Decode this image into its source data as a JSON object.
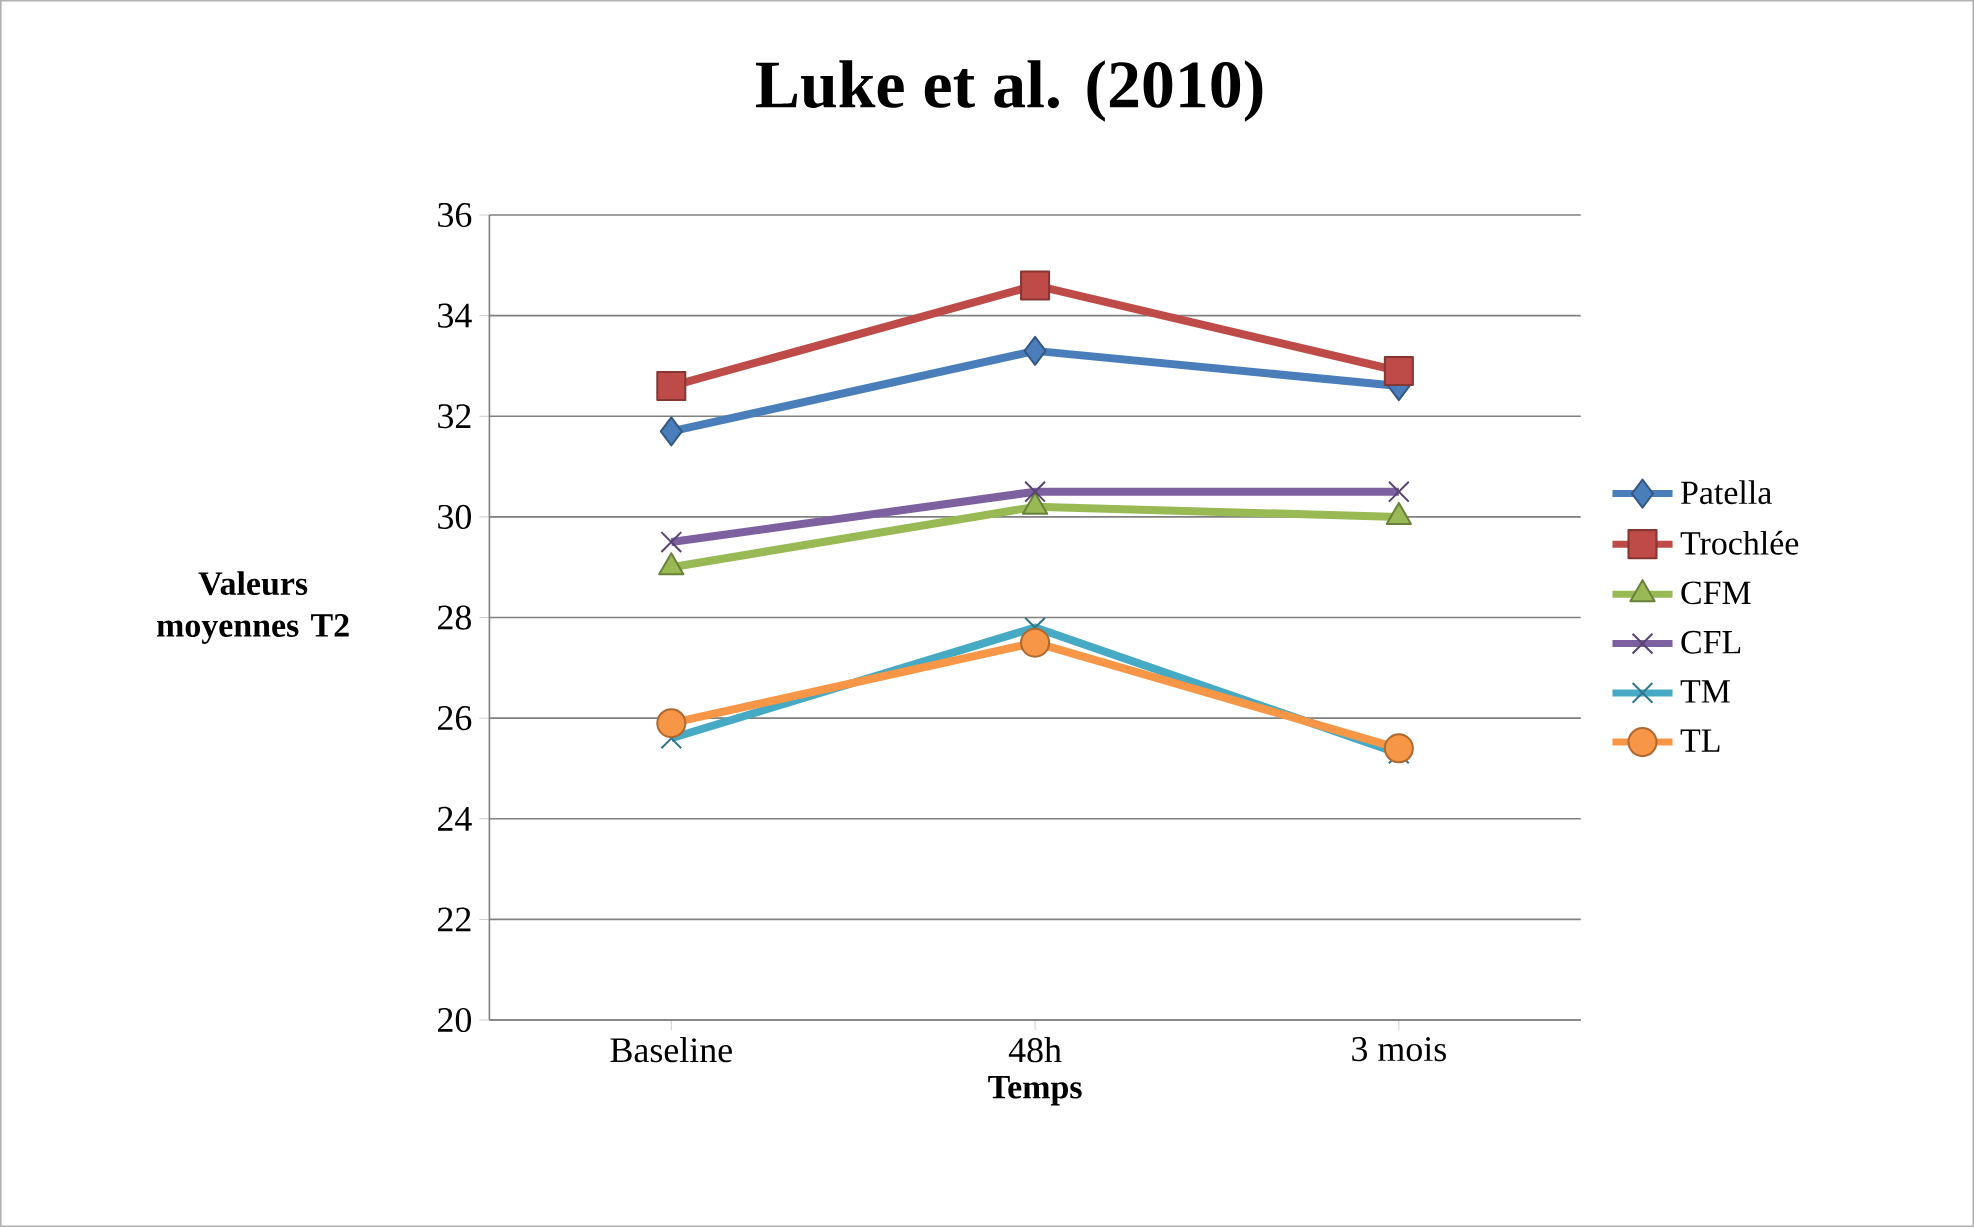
{
  "chart_data": {
    "type": "line",
    "title": "Luke et al. (2010)",
    "xlabel": "Temps",
    "ylabel": "Valeurs moyennes T2",
    "categories": [
      "Baseline",
      "48h",
      "3 mois"
    ],
    "series": [
      {
        "name": "Patella",
        "color": "#4a7ebb",
        "marker": "diamond",
        "values": [
          31.7,
          33.3,
          32.6
        ]
      },
      {
        "name": "Trochlée",
        "color": "#be4b48",
        "marker": "square",
        "values": [
          32.6,
          34.6,
          32.9
        ]
      },
      {
        "name": "CFM",
        "color": "#98b954",
        "marker": "triangle",
        "values": [
          29.0,
          30.2,
          30.0
        ]
      },
      {
        "name": "CFL",
        "color": "#7d60a0",
        "marker": "cross",
        "values": [
          29.5,
          30.5,
          30.5
        ]
      },
      {
        "name": "TM",
        "color": "#46aac5",
        "marker": "cross",
        "values": [
          25.6,
          27.8,
          25.3
        ]
      },
      {
        "name": "TL",
        "color": "#f79646",
        "marker": "circle",
        "values": [
          25.9,
          27.5,
          25.4
        ]
      }
    ],
    "ylim": [
      20,
      36
    ],
    "yticks": [
      20,
      22,
      24,
      26,
      28,
      30,
      32,
      34,
      36
    ],
    "grid": "y",
    "legend": "right"
  }
}
